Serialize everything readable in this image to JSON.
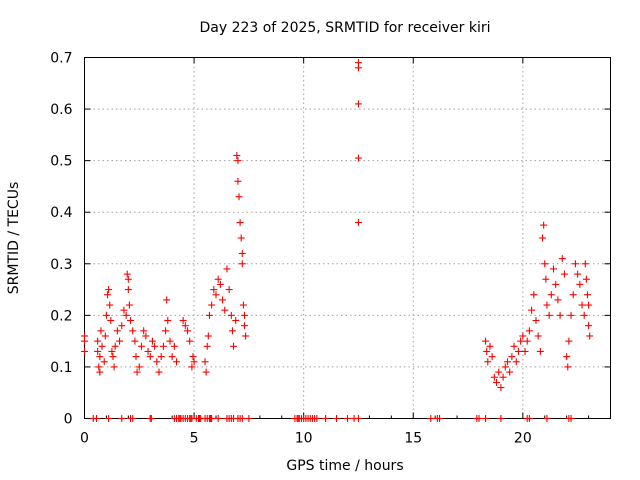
{
  "chart_data": {
    "type": "scatter",
    "title": "Day 223 of 2025, SRMTID for receiver kiri",
    "xlabel": "GPS time / hours",
    "ylabel": "SRMTID / TECUs",
    "xlim": [
      0,
      24
    ],
    "ylim": [
      0,
      0.7
    ],
    "x_ticks": [
      0,
      5,
      10,
      15,
      20
    ],
    "x_tick_labels": [
      "0",
      "5",
      "10",
      "15",
      "20"
    ],
    "y_ticks": [
      0,
      0.1,
      0.2,
      0.3,
      0.4,
      0.5,
      0.6,
      0.7
    ],
    "y_tick_labels": [
      "0",
      "0.1",
      "0.2",
      "0.3",
      "0.4",
      "0.5",
      "0.6",
      "0.7"
    ],
    "grid": true,
    "marker": "+",
    "series": [
      {
        "name": "SRMTID",
        "color": "#ff0000",
        "points": [
          [
            0.0,
            0.13
          ],
          [
            0.0,
            0.16
          ],
          [
            0.0,
            0.15
          ],
          [
            0.6,
            0.13
          ],
          [
            0.6,
            0.15
          ],
          [
            0.65,
            0.1
          ],
          [
            0.7,
            0.09
          ],
          [
            0.7,
            0.12
          ],
          [
            0.75,
            0.17
          ],
          [
            0.8,
            0.14
          ],
          [
            0.9,
            0.11
          ],
          [
            0.95,
            0.16
          ],
          [
            1.0,
            0.2
          ],
          [
            1.05,
            0.24
          ],
          [
            1.1,
            0.25
          ],
          [
            1.15,
            0.22
          ],
          [
            1.2,
            0.19
          ],
          [
            1.25,
            0.13
          ],
          [
            1.3,
            0.12
          ],
          [
            1.35,
            0.1
          ],
          [
            1.4,
            0.14
          ],
          [
            1.5,
            0.17
          ],
          [
            1.6,
            0.15
          ],
          [
            1.7,
            0.18
          ],
          [
            1.8,
            0.21
          ],
          [
            1.9,
            0.2
          ],
          [
            1.95,
            0.28
          ],
          [
            2.0,
            0.27
          ],
          [
            2.0,
            0.25
          ],
          [
            2.05,
            0.22
          ],
          [
            2.1,
            0.19
          ],
          [
            2.2,
            0.17
          ],
          [
            2.3,
            0.15
          ],
          [
            2.35,
            0.12
          ],
          [
            2.4,
            0.09
          ],
          [
            2.5,
            0.1
          ],
          [
            2.6,
            0.14
          ],
          [
            2.7,
            0.17
          ],
          [
            2.8,
            0.16
          ],
          [
            2.9,
            0.13
          ],
          [
            3.0,
            0.12
          ],
          [
            3.1,
            0.15
          ],
          [
            3.2,
            0.14
          ],
          [
            3.3,
            0.11
          ],
          [
            3.4,
            0.09
          ],
          [
            3.5,
            0.12
          ],
          [
            3.6,
            0.14
          ],
          [
            3.7,
            0.17
          ],
          [
            3.75,
            0.23
          ],
          [
            3.8,
            0.19
          ],
          [
            3.9,
            0.15
          ],
          [
            4.0,
            0.12
          ],
          [
            4.1,
            0.14
          ],
          [
            4.2,
            0.11
          ],
          [
            4.5,
            0.19
          ],
          [
            4.6,
            0.18
          ],
          [
            4.7,
            0.17
          ],
          [
            4.8,
            0.15
          ],
          [
            4.9,
            0.1
          ],
          [
            4.95,
            0.12
          ],
          [
            5.0,
            0.11
          ],
          [
            5.5,
            0.11
          ],
          [
            5.55,
            0.09
          ],
          [
            5.6,
            0.14
          ],
          [
            5.65,
            0.16
          ],
          [
            5.7,
            0.2
          ],
          [
            5.8,
            0.22
          ],
          [
            5.9,
            0.25
          ],
          [
            6.0,
            0.24
          ],
          [
            6.1,
            0.27
          ],
          [
            6.2,
            0.26
          ],
          [
            6.3,
            0.23
          ],
          [
            6.4,
            0.21
          ],
          [
            6.5,
            0.29
          ],
          [
            6.6,
            0.25
          ],
          [
            6.7,
            0.2
          ],
          [
            6.75,
            0.17
          ],
          [
            6.8,
            0.14
          ],
          [
            6.9,
            0.19
          ],
          [
            6.95,
            0.51
          ],
          [
            7.0,
            0.5
          ],
          [
            7.0,
            0.46
          ],
          [
            7.05,
            0.43
          ],
          [
            7.1,
            0.38
          ],
          [
            7.15,
            0.35
          ],
          [
            7.2,
            0.32
          ],
          [
            7.2,
            0.3
          ],
          [
            7.25,
            0.22
          ],
          [
            7.3,
            0.2
          ],
          [
            7.3,
            0.18
          ],
          [
            7.35,
            0.16
          ],
          [
            12.5,
            0.69
          ],
          [
            12.5,
            0.68
          ],
          [
            12.5,
            0.61
          ],
          [
            12.5,
            0.505
          ],
          [
            12.5,
            0.38
          ],
          [
            18.3,
            0.15
          ],
          [
            18.35,
            0.13
          ],
          [
            18.4,
            0.11
          ],
          [
            18.5,
            0.14
          ],
          [
            18.6,
            0.12
          ],
          [
            18.7,
            0.08
          ],
          [
            18.8,
            0.07
          ],
          [
            18.9,
            0.09
          ],
          [
            19.0,
            0.06
          ],
          [
            19.1,
            0.08
          ],
          [
            19.2,
            0.1
          ],
          [
            19.3,
            0.11
          ],
          [
            19.4,
            0.09
          ],
          [
            19.5,
            0.12
          ],
          [
            19.6,
            0.14
          ],
          [
            19.7,
            0.11
          ],
          [
            19.8,
            0.13
          ],
          [
            19.9,
            0.15
          ],
          [
            20.0,
            0.16
          ],
          [
            20.1,
            0.13
          ],
          [
            20.2,
            0.15
          ],
          [
            20.3,
            0.17
          ],
          [
            20.4,
            0.21
          ],
          [
            20.5,
            0.24
          ],
          [
            20.6,
            0.19
          ],
          [
            20.7,
            0.16
          ],
          [
            20.8,
            0.13
          ],
          [
            20.9,
            0.35
          ],
          [
            20.95,
            0.375
          ],
          [
            21.0,
            0.3
          ],
          [
            21.05,
            0.27
          ],
          [
            21.1,
            0.22
          ],
          [
            21.2,
            0.2
          ],
          [
            21.3,
            0.24
          ],
          [
            21.4,
            0.29
          ],
          [
            21.5,
            0.26
          ],
          [
            21.6,
            0.23
          ],
          [
            21.7,
            0.2
          ],
          [
            21.8,
            0.31
          ],
          [
            21.9,
            0.28
          ],
          [
            22.0,
            0.12
          ],
          [
            22.05,
            0.1
          ],
          [
            22.1,
            0.15
          ],
          [
            22.2,
            0.2
          ],
          [
            22.3,
            0.24
          ],
          [
            22.4,
            0.3
          ],
          [
            22.5,
            0.28
          ],
          [
            22.6,
            0.26
          ],
          [
            22.7,
            0.22
          ],
          [
            22.8,
            0.2
          ],
          [
            22.85,
            0.3
          ],
          [
            22.9,
            0.27
          ],
          [
            22.95,
            0.24
          ],
          [
            23.0,
            0.22
          ],
          [
            23.0,
            0.18
          ],
          [
            23.05,
            0.16
          ]
        ],
        "zero_points_x": [
          0.4,
          0.55,
          1.1,
          1.7,
          2.1,
          2.2,
          3.0,
          3.05,
          4.1,
          4.2,
          4.3,
          4.35,
          4.4,
          4.5,
          4.6,
          4.7,
          4.8,
          4.85,
          4.9,
          5.1,
          5.2,
          5.25,
          5.3,
          5.5,
          5.6,
          5.7,
          5.75,
          5.8,
          6.1,
          6.5,
          6.6,
          6.7,
          6.8,
          7.0,
          7.1,
          7.2,
          7.5,
          9.6,
          9.7,
          9.75,
          9.8,
          9.9,
          10.0,
          10.1,
          10.2,
          10.3,
          10.4,
          10.5,
          10.6,
          11.0,
          11.5,
          12.0,
          12.3,
          12.5,
          15.8,
          16.1,
          16.2,
          17.9,
          18.0,
          18.3,
          19.0,
          20.2,
          20.3,
          21.1,
          22.1,
          22.2
        ]
      }
    ]
  }
}
